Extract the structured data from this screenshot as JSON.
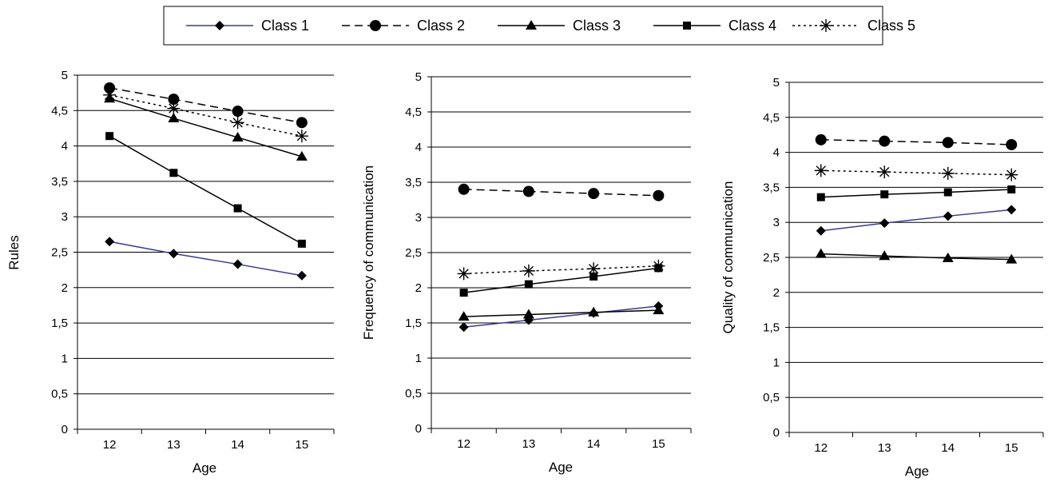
{
  "legend": [
    {
      "name": "Class 1",
      "marker": "diamond",
      "color": "#3b3b8f",
      "dash": "solid"
    },
    {
      "name": "Class 2",
      "marker": "circle",
      "color": "#000000",
      "dash": "dashed"
    },
    {
      "name": "Class 3",
      "marker": "triangle",
      "color": "#000000",
      "dash": "solid"
    },
    {
      "name": "Class 4",
      "marker": "square",
      "color": "#000000",
      "dash": "solid"
    },
    {
      "name": "Class 5",
      "marker": "asterisk",
      "color": "#000000",
      "dash": "dotted"
    }
  ],
  "chart_data": [
    {
      "type": "line",
      "xlabel": "Age",
      "ylabel": "Rules",
      "x": [
        "12",
        "13",
        "14",
        "15"
      ],
      "ylim": [
        0,
        5
      ],
      "yticks": [
        "0",
        "0,5",
        "1",
        "1,5",
        "2",
        "2,5",
        "3",
        "3,5",
        "4",
        "4,5",
        "5"
      ],
      "grid": true,
      "series": [
        {
          "name": "Class 1",
          "values": [
            2.65,
            2.48,
            2.33,
            2.17
          ]
        },
        {
          "name": "Class 2",
          "values": [
            4.82,
            4.66,
            4.49,
            4.33
          ]
        },
        {
          "name": "Class 3",
          "values": [
            4.67,
            4.39,
            4.12,
            3.85
          ]
        },
        {
          "name": "Class 4",
          "values": [
            4.14,
            3.62,
            3.12,
            2.62
          ]
        },
        {
          "name": "Class 5",
          "values": [
            4.72,
            4.53,
            4.33,
            4.14
          ]
        }
      ]
    },
    {
      "type": "line",
      "xlabel": "Age",
      "ylabel": "Frequency of communication",
      "x": [
        "12",
        "13",
        "14",
        "15"
      ],
      "ylim": [
        0,
        5
      ],
      "yticks": [
        "0",
        "0,5",
        "1",
        "1,5",
        "2",
        "2,5",
        "3",
        "3,5",
        "4",
        "4,5",
        "5"
      ],
      "grid": true,
      "series": [
        {
          "name": "Class 1",
          "values": [
            1.44,
            1.54,
            1.64,
            1.74
          ]
        },
        {
          "name": "Class 2",
          "values": [
            3.4,
            3.37,
            3.34,
            3.31
          ]
        },
        {
          "name": "Class 3",
          "values": [
            1.59,
            1.62,
            1.65,
            1.68
          ]
        },
        {
          "name": "Class 4",
          "values": [
            1.93,
            2.05,
            2.16,
            2.28
          ]
        },
        {
          "name": "Class 5",
          "values": [
            2.2,
            2.24,
            2.27,
            2.31
          ]
        }
      ]
    },
    {
      "type": "line",
      "xlabel": "Age",
      "ylabel": "Quality of communication",
      "x": [
        "12",
        "13",
        "14",
        "15"
      ],
      "ylim": [
        0,
        5
      ],
      "yticks": [
        "0",
        "0,5",
        "1",
        "1,5",
        "2",
        "2,5",
        "3",
        "3,5",
        "4",
        "4,5",
        "5"
      ],
      "grid": true,
      "series": [
        {
          "name": "Class 1",
          "values": [
            2.88,
            2.99,
            3.09,
            3.18
          ]
        },
        {
          "name": "Class 2",
          "values": [
            4.18,
            4.16,
            4.14,
            4.11
          ]
        },
        {
          "name": "Class 3",
          "values": [
            2.55,
            2.52,
            2.49,
            2.47
          ]
        },
        {
          "name": "Class 4",
          "values": [
            3.36,
            3.4,
            3.43,
            3.47
          ]
        },
        {
          "name": "Class 5",
          "values": [
            3.74,
            3.72,
            3.7,
            3.68
          ]
        }
      ]
    }
  ]
}
